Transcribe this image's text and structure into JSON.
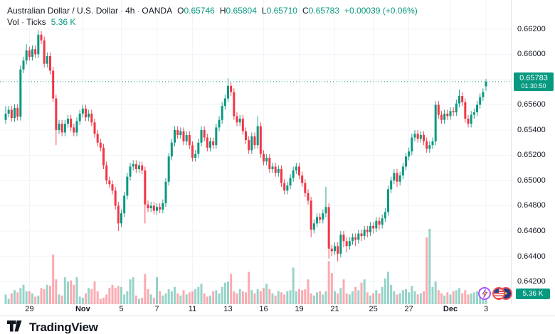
{
  "header": {
    "symbol_title": "Australian Dollar / U.S. Dollar",
    "interval": "4h",
    "exchange": "OANDA",
    "separator": "·",
    "ohlc": {
      "o_label": "O",
      "o_value": "0.65746",
      "h_label": "H",
      "h_value": "0.65804",
      "l_label": "L",
      "l_value": "0.65710",
      "c_label": "C",
      "c_value": "0.65783",
      "change": "+0.00039 (+0.06%)"
    },
    "volume_row": {
      "label": "Vol · Ticks",
      "value": "5.36 K"
    }
  },
  "price_axis": {
    "tick_values": [
      0.662,
      0.66,
      0.658,
      0.656,
      0.654,
      0.652,
      0.65,
      0.648,
      0.646,
      0.644,
      0.642
    ],
    "badge": {
      "price": "0.65783",
      "countdown": "01:30:50"
    },
    "volume_badge": "5.36 K"
  },
  "time_axis": {
    "ticks": [
      {
        "label": "29",
        "index": 8,
        "bold": false
      },
      {
        "label": "Nov",
        "index": 26,
        "bold": true
      },
      {
        "label": "5",
        "index": 39,
        "bold": false
      },
      {
        "label": "7",
        "index": 51,
        "bold": false
      },
      {
        "label": "11",
        "index": 63,
        "bold": false
      },
      {
        "label": "13",
        "index": 75,
        "bold": false
      },
      {
        "label": "16",
        "index": 87,
        "bold": false
      },
      {
        "label": "19",
        "index": 99,
        "bold": false
      },
      {
        "label": "21",
        "index": 111,
        "bold": false
      },
      {
        "label": "25",
        "index": 124,
        "bold": false
      },
      {
        "label": "27",
        "index": 136,
        "bold": false
      },
      {
        "label": "Dec",
        "index": 150,
        "bold": true
      },
      {
        "label": "3",
        "index": 162,
        "bold": false
      }
    ]
  },
  "events": [
    {
      "icon": "lightning-bolt-icon"
    },
    {
      "icon": "us-flag-icon"
    },
    {
      "icon": "eu-flag-icon",
      "star": "★"
    }
  ],
  "footer": {
    "logo_text": "TradingView"
  },
  "colors": {
    "up": "#089981",
    "down": "#f23645",
    "volume_up": "rgba(8,153,129,0.42)",
    "volume_down": "rgba(242,54,69,0.42)",
    "grid": "#f0f3fa",
    "axis_border": "#e0e3eb",
    "badge": "#089981",
    "text": "#131722"
  },
  "chart_data": {
    "type": "candlestick",
    "title": "Australian Dollar / U.S. Dollar · 4h · OANDA",
    "symbol": "AUD/USD",
    "interval": "4h",
    "exchange": "OANDA",
    "legend_position": "top-left",
    "grid": true,
    "ylim": [
      0.6402,
      0.6643
    ],
    "price_gridline_step": 0.002,
    "current_price": 0.65783,
    "last_ohlc": {
      "open": 0.65746,
      "high": 0.65804,
      "low": 0.6571,
      "close": 0.65783,
      "change": 0.00039,
      "change_pct": 0.06
    },
    "volume_unit": "K ticks",
    "current_volume_k": 5.36,
    "candles": [
      [
        0.6548,
        0.6559,
        0.6545,
        0.6553
      ],
      [
        0.6553,
        0.6559,
        0.655,
        0.6556
      ],
      [
        0.6556,
        0.6559,
        0.65465,
        0.65495
      ],
      [
        0.65495,
        0.65605,
        0.65465,
        0.65575
      ],
      [
        0.65575,
        0.65605,
        0.65475,
        0.65505
      ],
      [
        0.65505,
        0.6591,
        0.65475,
        0.6588
      ],
      [
        0.6588,
        0.6598,
        0.6585,
        0.6595
      ],
      [
        0.6595,
        0.6608,
        0.6592,
        0.6603
      ],
      [
        0.6603,
        0.6606,
        0.6595,
        0.6598
      ],
      [
        0.6598,
        0.6607,
        0.6595,
        0.6604
      ],
      [
        0.6604,
        0.6607,
        0.6597,
        0.66
      ],
      [
        0.66,
        0.6619,
        0.6597,
        0.66155
      ],
      [
        0.66155,
        0.66185,
        0.6608,
        0.6611
      ],
      [
        0.6611,
        0.6614,
        0.65895,
        0.65925
      ],
      [
        0.65925,
        0.66015,
        0.65895,
        0.65985
      ],
      [
        0.65985,
        0.66015,
        0.6584,
        0.6587
      ],
      [
        0.6587,
        0.659,
        0.6562,
        0.6565
      ],
      [
        0.6565,
        0.6568,
        0.6528,
        0.654
      ],
      [
        0.654,
        0.6548,
        0.6537,
        0.6545
      ],
      [
        0.6545,
        0.6548,
        0.6535,
        0.6538
      ],
      [
        0.6538,
        0.6548,
        0.6535,
        0.6545
      ],
      [
        0.6545,
        0.6552,
        0.6542,
        0.6549
      ],
      [
        0.6549,
        0.6552,
        0.6539,
        0.6542
      ],
      [
        0.6542,
        0.6545,
        0.6535,
        0.6538
      ],
      [
        0.6538,
        0.655,
        0.6535,
        0.6547
      ],
      [
        0.6547,
        0.6556,
        0.6544,
        0.6553
      ],
      [
        0.6553,
        0.656,
        0.655,
        0.6557
      ],
      [
        0.6557,
        0.656,
        0.6547,
        0.655
      ],
      [
        0.655,
        0.6556,
        0.6547,
        0.6553
      ],
      [
        0.6553,
        0.6556,
        0.6543,
        0.6546
      ],
      [
        0.6546,
        0.6549,
        0.6534,
        0.6537
      ],
      [
        0.6537,
        0.654,
        0.6527,
        0.653
      ],
      [
        0.653,
        0.6533,
        0.6523,
        0.6526
      ],
      [
        0.6526,
        0.6529,
        0.6509,
        0.6512
      ],
      [
        0.6512,
        0.6515,
        0.6497,
        0.65
      ],
      [
        0.65,
        0.6503,
        0.6494,
        0.6497
      ],
      [
        0.6497,
        0.65,
        0.6489,
        0.6492
      ],
      [
        0.6492,
        0.6495,
        0.6477,
        0.648
      ],
      [
        0.648,
        0.6483,
        0.646,
        0.6466
      ],
      [
        0.6466,
        0.6477,
        0.6463,
        0.6474
      ],
      [
        0.6474,
        0.6491,
        0.6471,
        0.6488
      ],
      [
        0.6488,
        0.6506,
        0.6485,
        0.6503
      ],
      [
        0.6503,
        0.6514,
        0.65,
        0.6511
      ],
      [
        0.6511,
        0.6516,
        0.6508,
        0.6513
      ],
      [
        0.6513,
        0.6516,
        0.6506,
        0.6509
      ],
      [
        0.6509,
        0.6515,
        0.6506,
        0.6512
      ],
      [
        0.6512,
        0.6515,
        0.6505,
        0.6508
      ],
      [
        0.6508,
        0.6511,
        0.6466,
        0.6481
      ],
      [
        0.6481,
        0.6484,
        0.6475,
        0.6478
      ],
      [
        0.6478,
        0.6483,
        0.6475,
        0.648
      ],
      [
        0.648,
        0.6483,
        0.6473,
        0.6476
      ],
      [
        0.6476,
        0.6482,
        0.6473,
        0.6479
      ],
      [
        0.6479,
        0.6482,
        0.6474,
        0.6477
      ],
      [
        0.6477,
        0.6485,
        0.6474,
        0.6482
      ],
      [
        0.6482,
        0.6502,
        0.6479,
        0.6499
      ],
      [
        0.6499,
        0.6522,
        0.6496,
        0.6519
      ],
      [
        0.6519,
        0.6533,
        0.6516,
        0.653
      ],
      [
        0.653,
        0.6543,
        0.6527,
        0.654
      ],
      [
        0.654,
        0.6543,
        0.6533,
        0.6536
      ],
      [
        0.6536,
        0.6542,
        0.6533,
        0.6539
      ],
      [
        0.6539,
        0.6542,
        0.6528,
        0.6531
      ],
      [
        0.6531,
        0.6539,
        0.6528,
        0.6536
      ],
      [
        0.6536,
        0.6539,
        0.6525,
        0.6528
      ],
      [
        0.6528,
        0.6531,
        0.6515,
        0.6518
      ],
      [
        0.6518,
        0.6524,
        0.6515,
        0.6521
      ],
      [
        0.6521,
        0.6533,
        0.6518,
        0.653
      ],
      [
        0.653,
        0.6543,
        0.6527,
        0.654
      ],
      [
        0.654,
        0.6543,
        0.6531,
        0.6534
      ],
      [
        0.6534,
        0.6537,
        0.6523,
        0.6526
      ],
      [
        0.6526,
        0.6534,
        0.6523,
        0.6531
      ],
      [
        0.6531,
        0.6534,
        0.6525,
        0.6528
      ],
      [
        0.6528,
        0.6545,
        0.6525,
        0.6542
      ],
      [
        0.6542,
        0.6551,
        0.6539,
        0.6548
      ],
      [
        0.6548,
        0.6562,
        0.6545,
        0.6559
      ],
      [
        0.6559,
        0.6568,
        0.6556,
        0.6565
      ],
      [
        0.6565,
        0.6581,
        0.6562,
        0.6575
      ],
      [
        0.6575,
        0.6578,
        0.6567,
        0.657
      ],
      [
        0.657,
        0.6573,
        0.6548,
        0.6551
      ],
      [
        0.6551,
        0.6554,
        0.6543,
        0.6546
      ],
      [
        0.6546,
        0.6552,
        0.6543,
        0.6549
      ],
      [
        0.6549,
        0.6552,
        0.6536,
        0.6539
      ],
      [
        0.6539,
        0.6542,
        0.6529,
        0.6532
      ],
      [
        0.6532,
        0.6535,
        0.6521,
        0.6524
      ],
      [
        0.6524,
        0.6538,
        0.6521,
        0.6535
      ],
      [
        0.6535,
        0.6538,
        0.6525,
        0.6528
      ],
      [
        0.6528,
        0.6551,
        0.6525,
        0.6543
      ],
      [
        0.6543,
        0.6546,
        0.6518,
        0.6521
      ],
      [
        0.6521,
        0.6524,
        0.6512,
        0.6515
      ],
      [
        0.6515,
        0.6521,
        0.6512,
        0.6518
      ],
      [
        0.6518,
        0.6521,
        0.6506,
        0.6509
      ],
      [
        0.6509,
        0.6514,
        0.6506,
        0.6511
      ],
      [
        0.6511,
        0.6514,
        0.6503,
        0.6506
      ],
      [
        0.6506,
        0.6512,
        0.6503,
        0.6509
      ],
      [
        0.6509,
        0.6512,
        0.6495,
        0.6498
      ],
      [
        0.6498,
        0.6501,
        0.6489,
        0.6492
      ],
      [
        0.6492,
        0.6499,
        0.6489,
        0.6496
      ],
      [
        0.6496,
        0.6505,
        0.6493,
        0.6502
      ],
      [
        0.6502,
        0.6511,
        0.6499,
        0.6508
      ],
      [
        0.6508,
        0.6514,
        0.6505,
        0.6511
      ],
      [
        0.6511,
        0.6514,
        0.6501,
        0.6504
      ],
      [
        0.6504,
        0.6507,
        0.6495,
        0.6498
      ],
      [
        0.6498,
        0.6501,
        0.6487,
        0.649
      ],
      [
        0.649,
        0.6493,
        0.6481,
        0.6484
      ],
      [
        0.6484,
        0.6487,
        0.6455,
        0.6461
      ],
      [
        0.6461,
        0.6469,
        0.6458,
        0.6466
      ],
      [
        0.6466,
        0.6474,
        0.6463,
        0.6471
      ],
      [
        0.6471,
        0.6474,
        0.6466,
        0.6469
      ],
      [
        0.6469,
        0.6477,
        0.6466,
        0.6474
      ],
      [
        0.6474,
        0.6495,
        0.6471,
        0.6479
      ],
      [
        0.6479,
        0.6482,
        0.6438,
        0.6446
      ],
      [
        0.6446,
        0.6449,
        0.644,
        0.6444
      ],
      [
        0.6444,
        0.6451,
        0.6441,
        0.6448
      ],
      [
        0.6448,
        0.6451,
        0.6436,
        0.6442
      ],
      [
        0.6442,
        0.646,
        0.6439,
        0.6457
      ],
      [
        0.6457,
        0.646,
        0.6447,
        0.6452
      ],
      [
        0.6452,
        0.6455,
        0.6443,
        0.6448
      ],
      [
        0.6448,
        0.6455,
        0.6445,
        0.6452
      ],
      [
        0.6452,
        0.6458,
        0.6449,
        0.6455
      ],
      [
        0.6455,
        0.6458,
        0.6448,
        0.6453
      ],
      [
        0.6453,
        0.6461,
        0.645,
        0.6458
      ],
      [
        0.6458,
        0.6461,
        0.6452,
        0.6456
      ],
      [
        0.6456,
        0.6464,
        0.6453,
        0.6461
      ],
      [
        0.6461,
        0.6464,
        0.6455,
        0.6459
      ],
      [
        0.6459,
        0.6467,
        0.6456,
        0.6464
      ],
      [
        0.6464,
        0.6467,
        0.6458,
        0.6462
      ],
      [
        0.6462,
        0.6471,
        0.6459,
        0.6468
      ],
      [
        0.6468,
        0.6471,
        0.6461,
        0.6465
      ],
      [
        0.6465,
        0.6473,
        0.6462,
        0.647
      ],
      [
        0.647,
        0.6478,
        0.6467,
        0.6475
      ],
      [
        0.6475,
        0.6496,
        0.6472,
        0.6493
      ],
      [
        0.6493,
        0.6503,
        0.649,
        0.65
      ],
      [
        0.65,
        0.6509,
        0.6497,
        0.6506
      ],
      [
        0.6506,
        0.6509,
        0.6495,
        0.6499
      ],
      [
        0.6499,
        0.6507,
        0.6496,
        0.6504
      ],
      [
        0.6504,
        0.6514,
        0.6501,
        0.6511
      ],
      [
        0.6511,
        0.6522,
        0.6508,
        0.6519
      ],
      [
        0.6519,
        0.6526,
        0.6516,
        0.6523
      ],
      [
        0.6523,
        0.6537,
        0.652,
        0.6534
      ],
      [
        0.6534,
        0.654,
        0.6531,
        0.6537
      ],
      [
        0.6537,
        0.654,
        0.653,
        0.6533
      ],
      [
        0.6533,
        0.6539,
        0.653,
        0.6536
      ],
      [
        0.6536,
        0.6539,
        0.6528,
        0.6531
      ],
      [
        0.6531,
        0.6534,
        0.6522,
        0.6525
      ],
      [
        0.6525,
        0.6531,
        0.6522,
        0.6528
      ],
      [
        0.6528,
        0.6534,
        0.6525,
        0.6531
      ],
      [
        0.6531,
        0.6563,
        0.6528,
        0.656
      ],
      [
        0.656,
        0.6563,
        0.6549,
        0.6552
      ],
      [
        0.6552,
        0.6555,
        0.6545,
        0.6548
      ],
      [
        0.6548,
        0.6556,
        0.6545,
        0.6553
      ],
      [
        0.6553,
        0.6556,
        0.6548,
        0.6551
      ],
      [
        0.6551,
        0.6558,
        0.6548,
        0.6555
      ],
      [
        0.6555,
        0.6558,
        0.6551,
        0.6554
      ],
      [
        0.6554,
        0.6564,
        0.6551,
        0.6561
      ],
      [
        0.6561,
        0.6572,
        0.6558,
        0.6567
      ],
      [
        0.6567,
        0.657,
        0.6559,
        0.6562
      ],
      [
        0.6562,
        0.6565,
        0.6546,
        0.6549
      ],
      [
        0.6549,
        0.6552,
        0.6542,
        0.6545
      ],
      [
        0.6545,
        0.6555,
        0.6542,
        0.6552
      ],
      [
        0.6552,
        0.6557,
        0.6549,
        0.6554
      ],
      [
        0.6554,
        0.6563,
        0.6551,
        0.656
      ],
      [
        0.656,
        0.6569,
        0.6557,
        0.6566
      ],
      [
        0.6566,
        0.6573,
        0.6563,
        0.657
      ],
      [
        0.65746,
        0.65804,
        0.6571,
        0.65783
      ]
    ],
    "volumes_k": [
      4.5,
      2.5,
      5,
      6.5,
      5.5,
      7.5,
      9,
      6,
      6,
      5,
      3.5,
      4,
      7.5,
      7,
      9,
      8.5,
      23,
      11.5,
      4.5,
      4,
      12.5,
      10.5,
      11,
      9,
      12.5,
      3.5,
      3,
      5,
      7.5,
      7,
      10.5,
      6,
      2.5,
      3,
      4.5,
      7.5,
      9,
      7.5,
      8.5,
      8,
      4.5,
      6,
      11.5,
      12.5,
      4,
      2.5,
      3,
      14,
      7,
      4.5,
      3,
      12.5,
      6,
      4,
      5,
      7,
      6,
      8,
      5,
      4,
      6.5,
      4.5,
      5.5,
      6,
      7,
      8,
      9.5,
      5,
      3.5,
      4,
      6,
      6.5,
      5,
      8,
      10,
      10.5,
      14,
      6,
      5,
      7,
      6,
      5.5,
      15,
      6.5,
      5,
      7,
      6,
      7.5,
      9.5,
      7,
      5,
      4,
      6,
      5.5,
      4.5,
      6,
      6.5,
      17,
      6,
      7,
      6.5,
      7,
      11.5,
      5,
      4,
      5.5,
      6,
      4.5,
      6,
      20,
      14.5,
      6,
      5,
      7.5,
      11.5,
      5,
      4.5,
      6,
      8,
      6.5,
      10,
      11.5,
      5.5,
      4,
      5,
      6.5,
      5,
      8,
      12,
      15,
      9,
      6,
      4.5,
      5,
      6.5,
      7,
      5.5,
      8.5,
      6,
      4.5,
      5,
      6,
      31,
      35,
      8,
      10.5,
      6.5,
      5,
      4,
      5.5,
      4.5,
      6,
      6.5,
      7.5,
      5,
      6.5,
      4.5,
      5,
      5.5,
      6,
      7,
      6.5,
      5.36
    ]
  }
}
